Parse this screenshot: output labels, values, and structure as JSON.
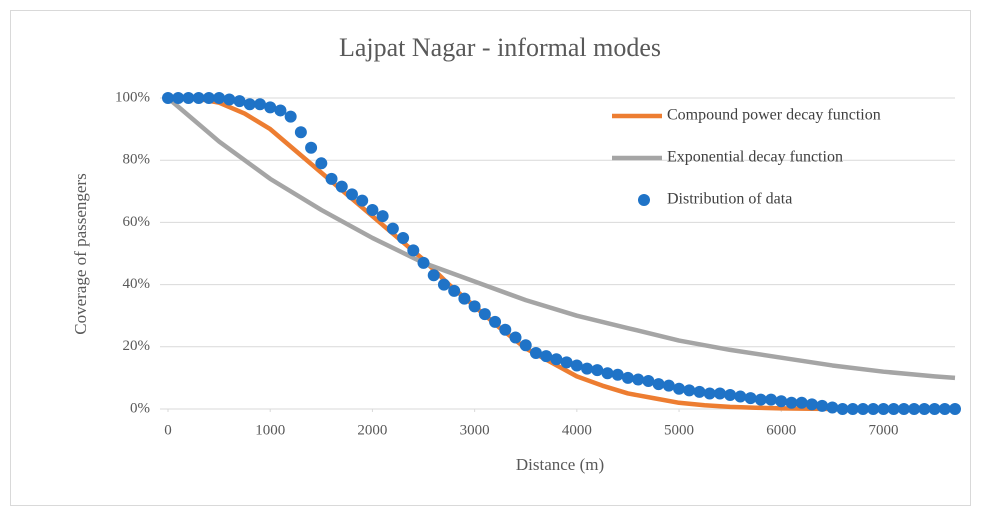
{
  "chart_data": {
    "type": "combo",
    "title": "Lajpat Nagar - informal modes",
    "x_label": "Distance (m)",
    "y_label": "Coverage of passengers",
    "xlim": [
      0,
      7700
    ],
    "xticks": [
      0,
      1000,
      2000,
      3000,
      4000,
      5000,
      6000,
      7000
    ],
    "ylim": [
      0,
      100
    ],
    "yticks": [
      {
        "value": 0,
        "label": "0%"
      },
      {
        "value": 20,
        "label": "20%"
      },
      {
        "value": 40,
        "label": "40%"
      },
      {
        "value": 60,
        "label": "60%"
      },
      {
        "value": 80,
        "label": "80%"
      },
      {
        "value": 100,
        "label": "100%"
      }
    ],
    "grid": true,
    "legend": "upper right",
    "series": [
      {
        "name": "Compound power decay function",
        "type": "line",
        "color": "#ed7d31",
        "x": [
          0,
          250,
          500,
          750,
          1000,
          1250,
          1500,
          1750,
          2000,
          2250,
          2500,
          2750,
          3000,
          3250,
          3500,
          3750,
          4000,
          4250,
          4500,
          4750,
          5000,
          5250,
          5500,
          5750,
          6000,
          6500,
          7000,
          7500
        ],
        "values": [
          100,
          100,
          98.5,
          95,
          90,
          83,
          76,
          69,
          62,
          55,
          48,
          40,
          33,
          26,
          19.5,
          15,
          10.5,
          7.5,
          5,
          3.5,
          2,
          1.2,
          0.7,
          0.4,
          0.2,
          0,
          0,
          0
        ]
      },
      {
        "name": "Exponential decay function",
        "type": "line",
        "color": "#a5a5a5",
        "x": [
          0,
          500,
          1000,
          1500,
          2000,
          2500,
          3000,
          3500,
          4000,
          4500,
          5000,
          5500,
          6000,
          6500,
          7000,
          7500,
          7700
        ],
        "values": [
          100,
          86,
          74,
          64,
          55,
          47,
          41,
          35,
          30,
          26,
          22,
          19,
          16.5,
          14,
          12,
          10.5,
          10
        ]
      },
      {
        "name": "Distribution of data",
        "type": "scatter",
        "color": "#1f73c7",
        "x": [
          0,
          100,
          200,
          300,
          400,
          500,
          600,
          700,
          800,
          900,
          1000,
          1100,
          1200,
          1300,
          1400,
          1500,
          1600,
          1700,
          1800,
          1900,
          2000,
          2100,
          2200,
          2300,
          2400,
          2500,
          2600,
          2700,
          2800,
          2900,
          3000,
          3100,
          3200,
          3300,
          3400,
          3500,
          3600,
          3700,
          3800,
          3900,
          4000,
          4100,
          4200,
          4300,
          4400,
          4500,
          4600,
          4700,
          4800,
          4900,
          5000,
          5100,
          5200,
          5300,
          5400,
          5500,
          5600,
          5700,
          5800,
          5900,
          6000,
          6100,
          6200,
          6300,
          6400,
          6500,
          6600,
          6700,
          6800,
          6900,
          7000,
          7100,
          7200,
          7300,
          7400,
          7500,
          7600,
          7700
        ],
        "values": [
          100,
          100,
          100,
          100,
          100,
          100,
          99.5,
          99,
          98,
          98,
          97,
          96,
          94,
          89,
          84,
          79,
          74,
          71.5,
          69,
          67,
          64,
          62,
          58,
          55,
          51,
          47,
          43,
          40,
          38,
          35.5,
          33,
          30.5,
          28,
          25.5,
          23,
          20.5,
          18,
          17,
          16,
          15,
          14,
          13,
          12.5,
          11.5,
          11,
          10,
          9.5,
          9,
          8,
          7.5,
          6.5,
          6,
          5.5,
          5,
          5,
          4.5,
          4,
          3.5,
          3,
          3,
          2.5,
          2,
          2,
          1.5,
          1,
          0.5,
          0,
          0,
          0,
          0,
          0,
          0,
          0,
          0,
          0,
          0,
          0,
          0
        ]
      }
    ]
  }
}
